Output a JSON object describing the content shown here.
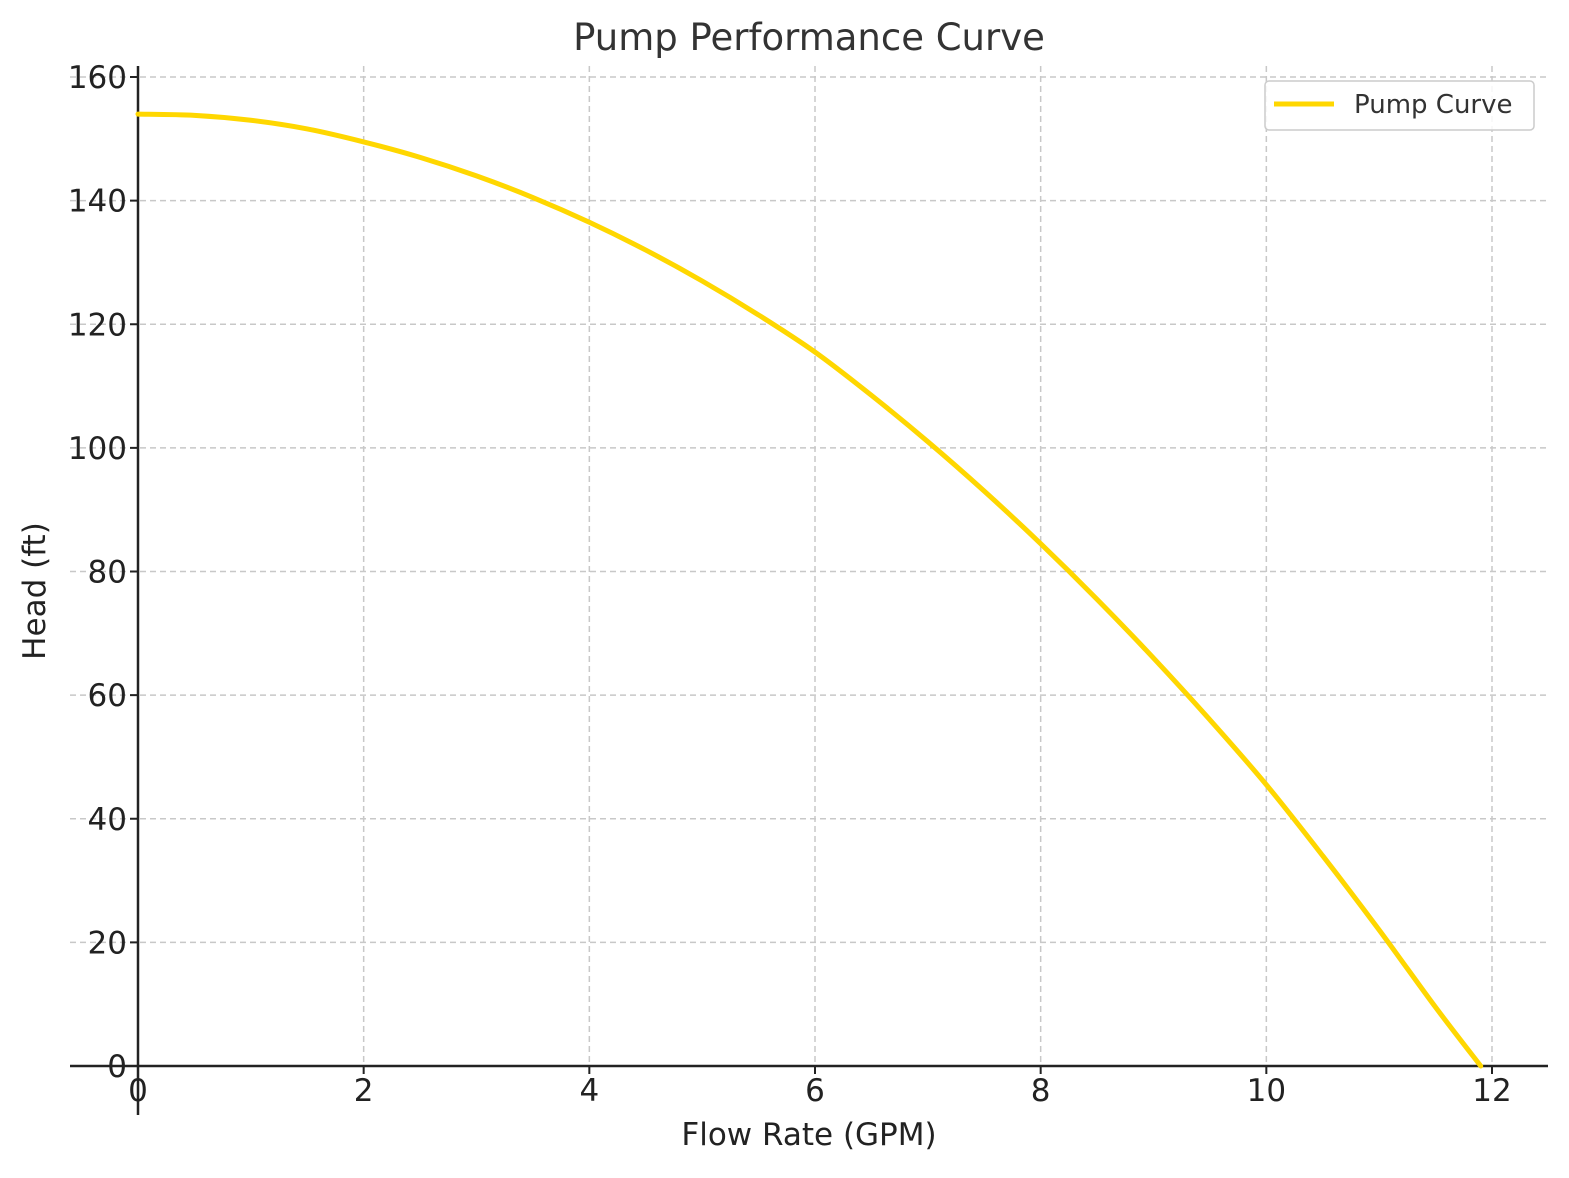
{
  "chart_data": {
    "type": "line",
    "title": "Pump Performance Curve",
    "xlabel": "Flow Rate (GPM)",
    "ylabel": "Head (ft)",
    "xlim": [
      -0.6,
      12.5
    ],
    "ylim": [
      0,
      162
    ],
    "xticks": [
      0,
      2,
      4,
      6,
      8,
      10,
      12
    ],
    "yticks": [
      0,
      20,
      40,
      60,
      80,
      100,
      120,
      140,
      160
    ],
    "grid": true,
    "legend_position": "top-right",
    "series": [
      {
        "name": "Pump Curve",
        "color": "#FFD700",
        "x": [
          0,
          0.5,
          1,
          1.5,
          2,
          2.5,
          3,
          3.5,
          4,
          4.5,
          5,
          5.5,
          6,
          6.5,
          7,
          7.5,
          8,
          8.5,
          9,
          9.5,
          10,
          10.5,
          11,
          11.5,
          11.9
        ],
        "y": [
          154,
          153.8,
          153,
          151.6,
          149.5,
          147,
          144,
          140.5,
          136.5,
          132,
          127,
          121.5,
          115.5,
          108.5,
          101,
          93,
          84.5,
          75.5,
          66,
          56,
          45.5,
          34,
          22,
          9.5,
          0
        ]
      }
    ]
  }
}
